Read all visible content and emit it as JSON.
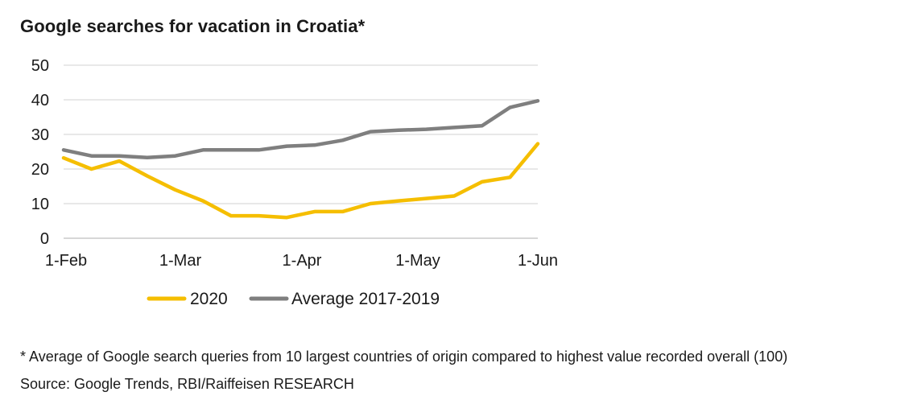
{
  "chart_data": {
    "type": "line",
    "title": "Google searches for vacation in Croatia*",
    "x_tick_labels": [
      "1-Feb",
      "1-Mar",
      "1-Apr",
      "1-May",
      "1-Jun"
    ],
    "x": [
      "1-Feb",
      "8-Feb",
      "15-Feb",
      "22-Feb",
      "1-Mar",
      "8-Mar",
      "15-Mar",
      "22-Mar",
      "29-Mar",
      "5-Apr",
      "12-Apr",
      "19-Apr",
      "26-Apr",
      "3-May",
      "10-May",
      "17-May",
      "24-May",
      "31-May"
    ],
    "ylim": [
      0,
      50
    ],
    "y_ticks": [
      0,
      10,
      20,
      30,
      40,
      50
    ],
    "grid": true,
    "legend_position": "bottom",
    "series": [
      {
        "name": "2020",
        "color": "#F5BE00",
        "values": [
          23.2,
          20,
          22.3,
          18,
          14,
          10.8,
          6.5,
          6.5,
          6,
          7.7,
          7.7,
          10,
          10.8,
          11.5,
          12.2,
          16.3,
          17.6,
          27.3
        ]
      },
      {
        "name": "Average 2017-2019",
        "color": "#7F7F7F",
        "values": [
          25.5,
          23.8,
          23.8,
          23.3,
          23.8,
          25.5,
          25.5,
          25.5,
          26.6,
          26.9,
          28.3,
          30.8,
          31.2,
          31.5,
          32,
          32.5,
          37.8,
          39.7
        ]
      }
    ]
  },
  "footnote": "* Average of Google search queries from 10 largest countries of origin compared to highest value recorded overall (100)",
  "source": "Source: Google Trends, RBI/Raiffeisen RESEARCH"
}
